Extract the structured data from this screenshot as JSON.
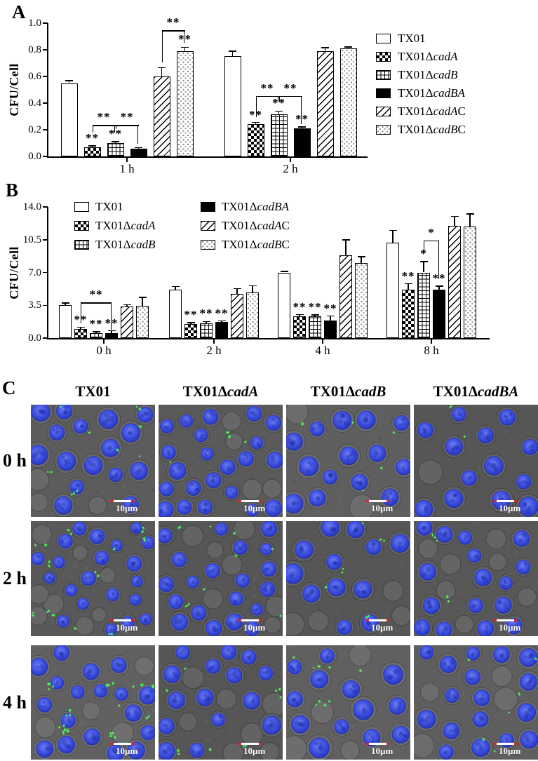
{
  "panels": {
    "a": "A",
    "b": "B",
    "c": "C"
  },
  "strains": [
    {
      "pre": "TX01",
      "it": "",
      "post": ""
    },
    {
      "pre": "TX01Δ",
      "it": "cadA",
      "post": ""
    },
    {
      "pre": "TX01Δ",
      "it": "cadB",
      "post": ""
    },
    {
      "pre": "TX01Δ",
      "it": "cadBA",
      "post": ""
    },
    {
      "pre": "TX01Δ",
      "it": "cadA",
      "post": "C"
    },
    {
      "pre": "TX01Δ",
      "it": "cadB",
      "post": "C"
    }
  ],
  "chart_data": [
    {
      "type": "bar",
      "title": "",
      "ylabel": "CFU/Cell",
      "ylim": [
        0,
        1.0
      ],
      "yticks": [
        "0.0",
        "0.2",
        "0.4",
        "0.6",
        "0.8",
        "1.0"
      ],
      "categories": [
        "1 h",
        "2 h"
      ],
      "legend_position": "right-outside",
      "grid": false,
      "series": [
        {
          "strain": 0,
          "pattern": "open",
          "values": [
            0.55,
            0.755
          ],
          "errors": [
            0.02,
            0.035
          ],
          "stars": [
            "",
            ""
          ]
        },
        {
          "strain": 1,
          "pattern": "checker",
          "values": [
            0.07,
            0.24
          ],
          "errors": [
            0.01,
            0.015
          ],
          "stars": [
            "**",
            "**"
          ]
        },
        {
          "strain": 2,
          "pattern": "grid",
          "values": [
            0.1,
            0.315
          ],
          "errors": [
            0.012,
            0.025
          ],
          "stars": [
            "**",
            "**"
          ]
        },
        {
          "strain": 3,
          "pattern": "solid",
          "values": [
            0.06,
            0.21
          ],
          "errors": [
            0.006,
            0.012
          ],
          "stars": [
            "",
            "**"
          ]
        },
        {
          "strain": 4,
          "pattern": "diag",
          "values": [
            0.6,
            0.79
          ],
          "errors": [
            0.065,
            0.025
          ],
          "stars": [
            "",
            ""
          ]
        },
        {
          "strain": 5,
          "pattern": "dots",
          "values": [
            0.79,
            0.81
          ],
          "errors": [
            0.03,
            0.012
          ],
          "stars": [
            "**",
            ""
          ]
        }
      ],
      "brackets": [
        {
          "cat": 0,
          "from": 1,
          "to": 2,
          "label": "**",
          "y": 0.235,
          "legL": 0.055,
          "legR": 0.055
        },
        {
          "cat": 0,
          "from": 2,
          "to": 3,
          "label": "**",
          "y": 0.235,
          "legL": 0.03,
          "legR": 0.14
        },
        {
          "cat": 0,
          "from": 4,
          "to": 5,
          "label": "**",
          "y": 0.945,
          "legL": 0.24,
          "legR": 0.09
        },
        {
          "cat": 1,
          "from": 1,
          "to": 2,
          "label": "**",
          "y": 0.455,
          "legL": 0.16,
          "legR": 0.045
        },
        {
          "cat": 1,
          "from": 2,
          "to": 3,
          "label": "**",
          "y": 0.455,
          "legL": 0.045,
          "legR": 0.215
        }
      ]
    },
    {
      "type": "bar",
      "title": "",
      "ylabel": "CFU/Cell",
      "ylim": [
        0,
        14.0
      ],
      "yticks": [
        "0.0",
        "3.5",
        "7.0",
        "10.5",
        "14.0"
      ],
      "categories": [
        "0 h",
        "2 h",
        "4 h",
        "8 h"
      ],
      "legend_position": "inside-top two-column",
      "grid": false,
      "series": [
        {
          "strain": 0,
          "pattern": "open",
          "values": [
            3.5,
            5.15,
            7.0,
            10.2
          ],
          "errors": [
            0.25,
            0.35,
            0.12,
            1.3
          ],
          "stars": [
            "",
            "",
            "",
            ""
          ]
        },
        {
          "strain": 1,
          "pattern": "checker",
          "values": [
            1.0,
            1.5,
            2.3,
            5.2
          ],
          "errors": [
            0.15,
            0.15,
            0.2,
            0.6
          ],
          "stars": [
            "**",
            "**",
            "**",
            "**"
          ]
        },
        {
          "strain": 2,
          "pattern": "grid",
          "values": [
            0.55,
            1.6,
            2.3,
            7.0
          ],
          "errors": [
            0.12,
            0.18,
            0.18,
            1.15
          ],
          "stars": [
            "**",
            "**",
            "**",
            "*"
          ]
        },
        {
          "strain": 3,
          "pattern": "solid",
          "values": [
            0.5,
            1.7,
            1.9,
            5.2
          ],
          "errors": [
            0.28,
            0.12,
            0.45,
            0.35
          ],
          "stars": [
            "**",
            "**",
            "**",
            "**"
          ]
        },
        {
          "strain": 4,
          "pattern": "diag",
          "values": [
            3.35,
            4.7,
            8.8,
            12.0
          ],
          "errors": [
            0.2,
            0.6,
            1.7,
            1.0
          ],
          "stars": [
            "",
            "",
            "",
            ""
          ]
        },
        {
          "strain": 5,
          "pattern": "dots",
          "values": [
            3.45,
            4.85,
            8.0,
            11.9
          ],
          "errors": [
            0.9,
            0.75,
            0.7,
            1.35
          ],
          "stars": [
            "",
            "",
            "",
            ""
          ]
        }
      ],
      "brackets": [
        {
          "cat": 0,
          "from": 1,
          "to": 3,
          "label": "**",
          "y": 3.8,
          "legL": 2.2,
          "legR": 2.9
        },
        {
          "cat": 3,
          "from": 2,
          "to": 3,
          "label": "*",
          "y": 10.4,
          "legL": 1.1,
          "legR": 4.1
        }
      ]
    }
  ],
  "panel_c": {
    "column_strains": [
      0,
      1,
      2,
      3
    ],
    "row_labels": [
      "0 h",
      "2 h",
      "4 h"
    ],
    "scale_bar_label": "10µm",
    "colors": {
      "background_gray": "#5a5a5a",
      "nucleus_blue": "#3b4ede",
      "bacteria_green": "#3ce64c",
      "scalebar_red": "#dd2222",
      "scalebar_white": "#ffffff"
    },
    "cells": [
      [
        {
          "nuclei": 19,
          "bacteria": 13,
          "clustered": false
        },
        {
          "nuclei": 26,
          "bacteria": 4,
          "clustered": false
        },
        {
          "nuclei": 17,
          "bacteria": 5,
          "clustered": false
        },
        {
          "nuclei": 15,
          "bacteria": 2,
          "clustered": false
        }
      ],
      [
        {
          "nuclei": 30,
          "bacteria": 22,
          "clustered": false
        },
        {
          "nuclei": 27,
          "bacteria": 9,
          "clustered": false
        },
        {
          "nuclei": 16,
          "bacteria": 8,
          "clustered": false
        },
        {
          "nuclei": 24,
          "bacteria": 5,
          "clustered": false
        }
      ],
      [
        {
          "nuclei": 22,
          "bacteria": 30,
          "clustered": true
        },
        {
          "nuclei": 22,
          "bacteria": 10,
          "clustered": false
        },
        {
          "nuclei": 17,
          "bacteria": 9,
          "clustered": false
        },
        {
          "nuclei": 21,
          "bacteria": 6,
          "clustered": false
        }
      ]
    ]
  }
}
